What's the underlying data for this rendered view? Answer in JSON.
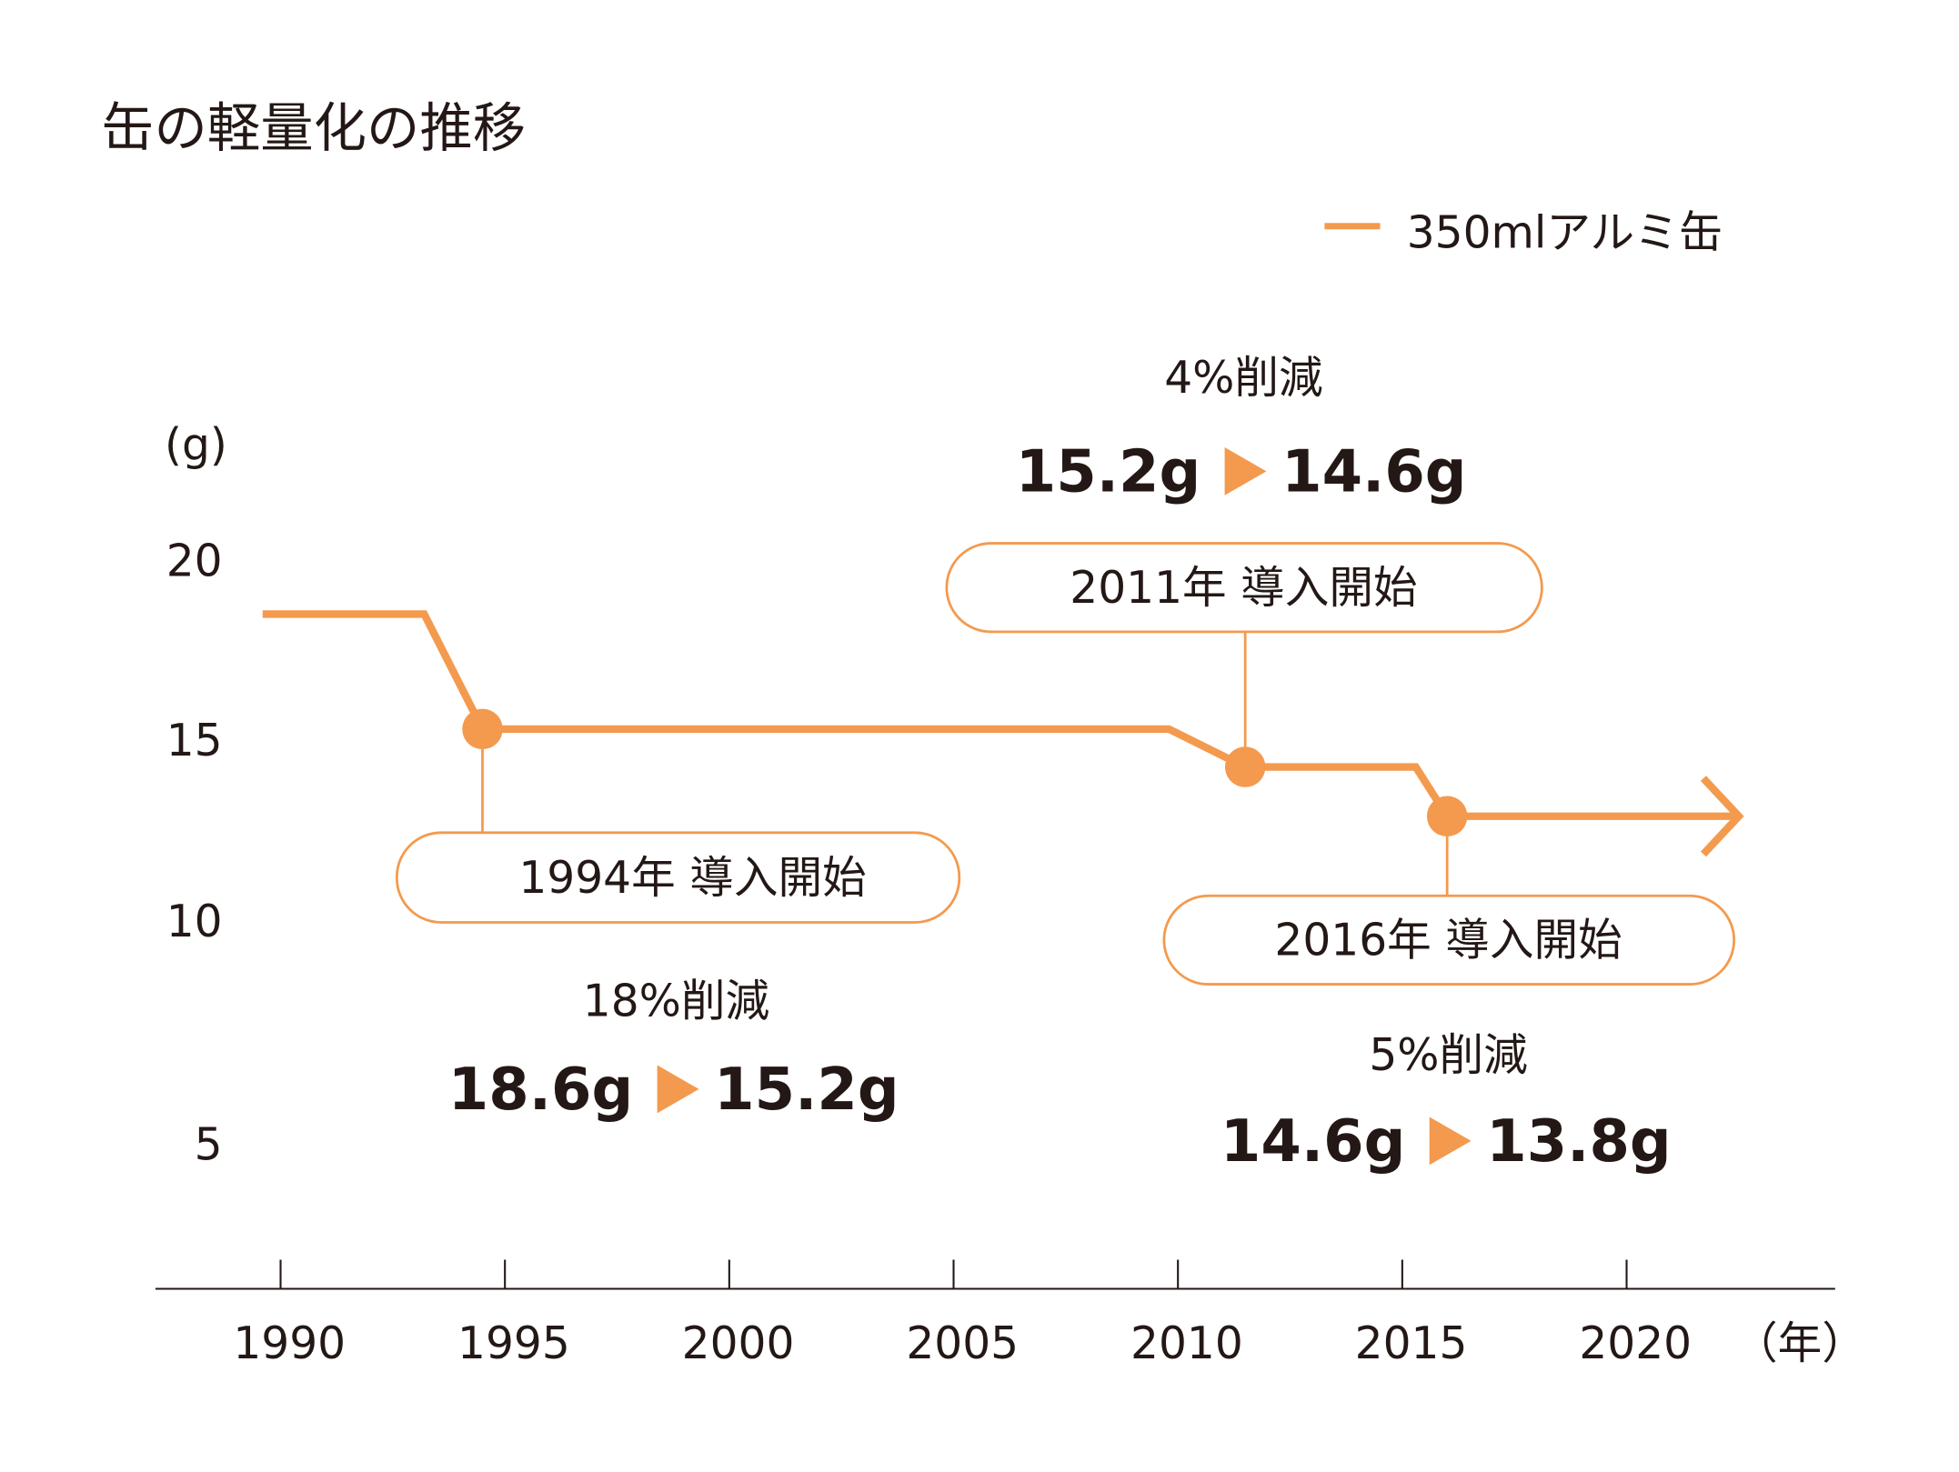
{
  "chart_data": {
    "type": "line",
    "title": "缶の軽量化の推移",
    "ylabel": "(g)",
    "xlabel": "（年）",
    "y_ticks": [
      "20",
      "15",
      "10",
      "5"
    ],
    "x_ticks": [
      "1990",
      "1995",
      "2000",
      "2005",
      "2010",
      "2015",
      "2020"
    ],
    "xlim": [
      1987,
      2024
    ],
    "grid": false,
    "legend_position": "top-right",
    "colors": {
      "series": "#F39A4E",
      "text": "#231815",
      "axis": "#231815"
    },
    "series": [
      {
        "name": "350mlアルミ缶",
        "x": [
          1989.6,
          1993.2,
          1994.5,
          2009.8,
          2011.5,
          2015.3,
          2016,
          2022.5
        ],
        "y": [
          18.6,
          18.6,
          15.2,
          15.2,
          14.6,
          14.6,
          13.8,
          13.8
        ],
        "markers": [
          {
            "x": 1994.5,
            "y": 15.2
          },
          {
            "x": 2011.5,
            "y": 14.6
          },
          {
            "x": 2016,
            "y": 13.8
          }
        ],
        "ends_with_arrow": true
      }
    ],
    "annotations": [
      {
        "callout": "1994年 導入開始",
        "reduction": "18%削減",
        "from": "18.6g",
        "to": "15.2g"
      },
      {
        "callout": "2011年 導入開始",
        "reduction": "4%削減",
        "from": "15.2g",
        "to": "14.6g"
      },
      {
        "callout": "2016年 導入開始",
        "reduction": "5%削減",
        "from": "14.6g",
        "to": "13.8g"
      }
    ]
  }
}
